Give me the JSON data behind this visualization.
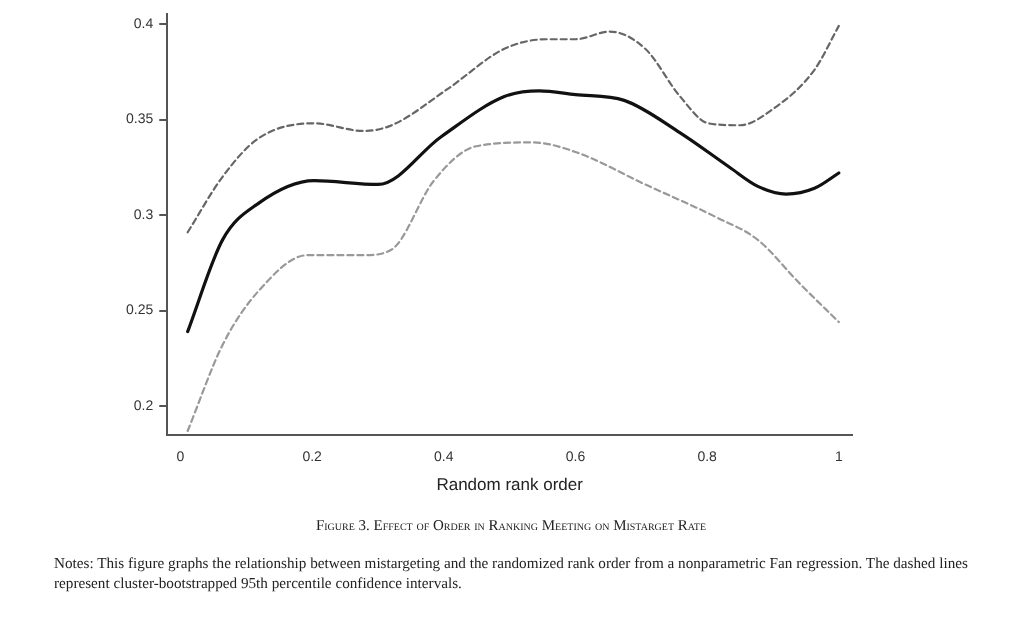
{
  "chart_data": {
    "type": "line",
    "title": "Figure 3. Effect of Order in Ranking Meeting on Mistarget Rate",
    "xlabel": "Random rank order",
    "annotations": [
      "Notes: This figure graphs the relationship between mistargeting and the randomized rank order from a nonparametric Fan regression. The dashed lines represent cluster-bootstrapped 95th percentile confidence intervals."
    ],
    "xlim": [
      -0.02,
      1.02
    ],
    "xticks": [
      0,
      0.2,
      0.4,
      0.6,
      0.8,
      1
    ],
    "ylim": [
      0.185,
      0.405
    ],
    "yticks": [
      0.2,
      0.25,
      0.3,
      0.35,
      0.4
    ],
    "grid": false,
    "legend": false,
    "marker": "none",
    "series": [
      {
        "color": "#111111",
        "line_style": "solid",
        "x": [
          0.011,
          0.064,
          0.118,
          0.203,
          0.3,
          0.396,
          0.492,
          0.545,
          0.6,
          0.674,
          0.759,
          0.834,
          0.877,
          0.92,
          0.963,
          1
        ],
        "values": [
          0.239,
          0.287,
          0.306,
          0.318,
          0.316,
          0.341,
          0.362,
          0.365,
          0.363,
          0.36,
          0.343,
          0.325,
          0.315,
          0.311,
          0.314,
          0.322
        ]
      },
      {
        "color": "#666666",
        "line_style": "dashed",
        "x": [
          0.011,
          0.064,
          0.118,
          0.203,
          0.278,
          0.321,
          0.406,
          0.492,
          0.556,
          0.6,
          0.652,
          0.706,
          0.759,
          0.802,
          0.85,
          0.898,
          0.963,
          1
        ],
        "values": [
          0.291,
          0.32,
          0.34,
          0.348,
          0.344,
          0.347,
          0.366,
          0.387,
          0.392,
          0.392,
          0.396,
          0.387,
          0.362,
          0.348,
          0.347,
          0.355,
          0.376,
          0.399
        ]
      },
      {
        "color": "#999999",
        "line_style": "dashed",
        "x": [
          0.011,
          0.064,
          0.118,
          0.193,
          0.278,
          0.321,
          0.385,
          0.449,
          0.535,
          0.6,
          0.706,
          0.813,
          0.877,
          0.941,
          1
        ],
        "values": [
          0.187,
          0.232,
          0.26,
          0.279,
          0.279,
          0.282,
          0.318,
          0.336,
          0.338,
          0.333,
          0.316,
          0.299,
          0.287,
          0.264,
          0.244
        ]
      }
    ]
  }
}
